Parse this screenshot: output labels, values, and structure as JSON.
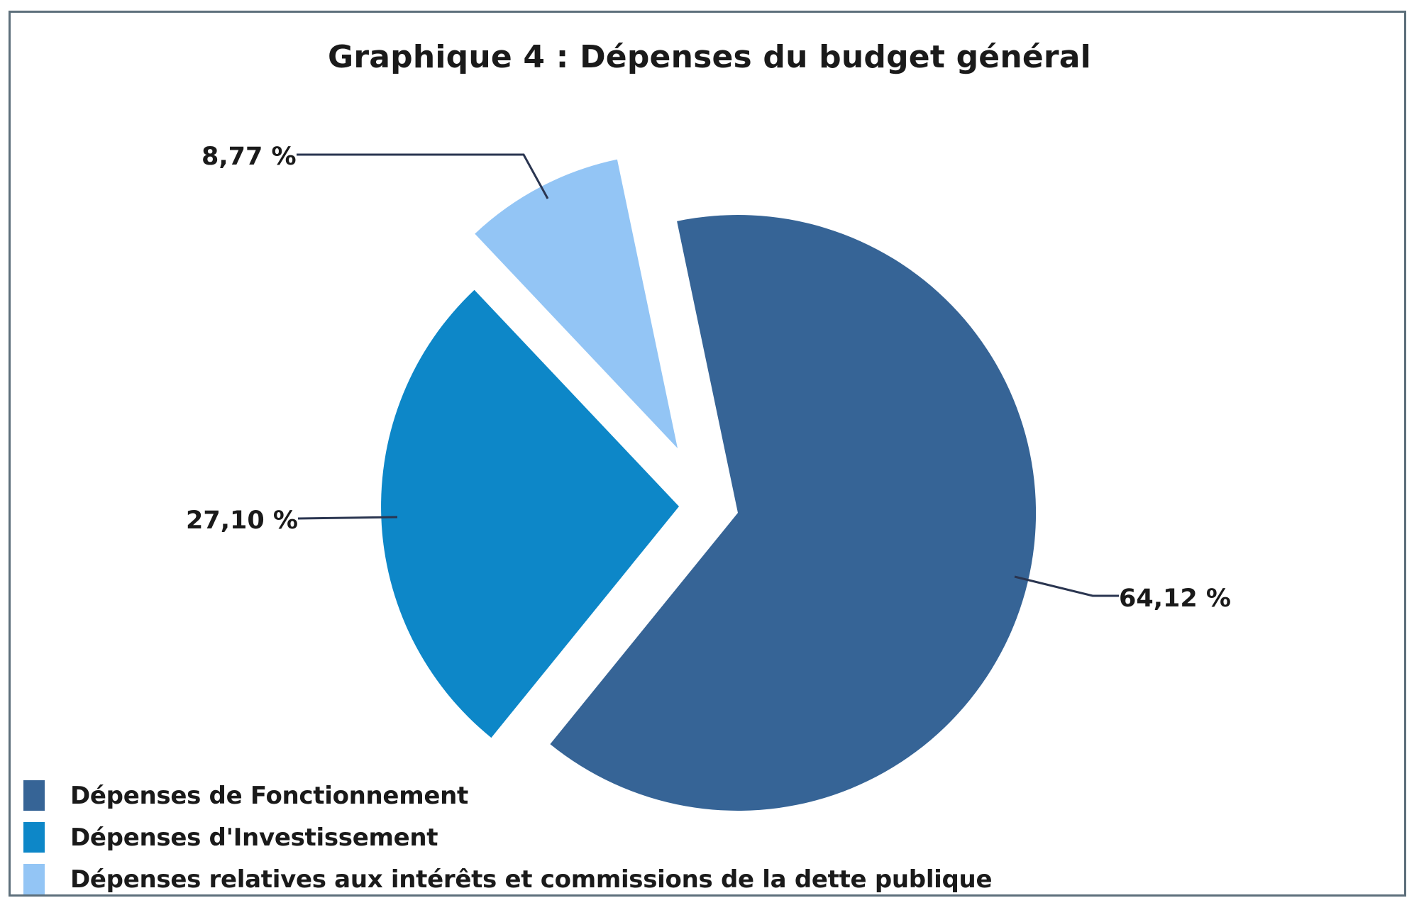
{
  "title": "Graphique 4 : Dépenses du budget général",
  "colors": {
    "fonctionnement": "#366496",
    "investissement": "#0d87c8",
    "dette": "#93c5f5",
    "frame_border": "#5d6f7b",
    "leader_line": "#1b2a4a"
  },
  "slices": [
    {
      "label": "Dépenses de Fonctionnement",
      "value_label": "64,12 %",
      "color": "#366496"
    },
    {
      "label": "Dépenses d'Investissement",
      "value_label": "27,10 %",
      "color": "#0d87c8"
    },
    {
      "label": "Dépenses relatives aux intérêts et commissions de la dette publique",
      "value_label": "8,77 %",
      "color": "#93c5f5"
    }
  ],
  "legend": {
    "items": [
      {
        "label": "Dépenses de Fonctionnement",
        "color": "#366496"
      },
      {
        "label": "Dépenses d'Investissement",
        "color": "#0d87c8"
      },
      {
        "label": "Dépenses relatives aux intérêts et commissions de la dette publique",
        "color": "#93c5f5"
      }
    ]
  },
  "chart_data": {
    "type": "pie",
    "title": "Graphique 4 : Dépenses du budget général",
    "categories": [
      "Dépenses de Fonctionnement",
      "Dépenses d'Investissement",
      "Dépenses relatives aux intérêts et commissions de la dette publique"
    ],
    "values": [
      64.12,
      27.1,
      8.77
    ],
    "value_labels": [
      "64,12 %",
      "27,10 %",
      "8,77 %"
    ],
    "unit": "%",
    "colors": [
      "#366496",
      "#0d87c8",
      "#93c5f5"
    ],
    "exploded": true,
    "legend_position": "bottom-left",
    "data_labels": "outside with leader lines"
  }
}
